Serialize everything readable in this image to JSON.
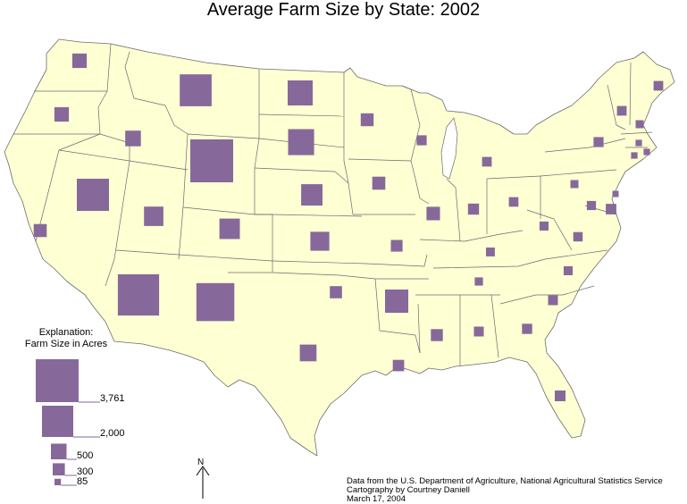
{
  "title": "Average Farm Size by State: 2002",
  "colors": {
    "land": "#ffffd4",
    "border": "#6b6b6b",
    "symbol": "#86699a"
  },
  "legend": {
    "heading_line1": "Explanation:",
    "heading_line2": "Farm Size in Acres",
    "entries": [
      {
        "value": 3761,
        "label": "3,761"
      },
      {
        "value": 2000,
        "label": "2,000"
      },
      {
        "value": 500,
        "label": "500"
      },
      {
        "value": 300,
        "label": "300"
      },
      {
        "value": 85,
        "label": "85"
      }
    ]
  },
  "north_arrow": {
    "label": "N"
  },
  "credits": {
    "line1": "Data from the U.S. Department of Agriculture, National Agricultural Statistics Service",
    "line2": "Cartography by Courtney Daniell",
    "line3": "March 17, 2004"
  },
  "symbol_type": "proportional-square",
  "states": [
    {
      "state": "WA",
      "acres": 426
    },
    {
      "state": "OR",
      "acres": 427
    },
    {
      "state": "CA",
      "acres": 346
    },
    {
      "state": "NV",
      "acres": 2118
    },
    {
      "state": "ID",
      "acres": 502
    },
    {
      "state": "MT",
      "acres": 2079
    },
    {
      "state": "WY",
      "acres": 3761
    },
    {
      "state": "UT",
      "acres": 768
    },
    {
      "state": "AZ",
      "acres": 3480
    },
    {
      "state": "CO",
      "acres": 853
    },
    {
      "state": "NM",
      "acres": 2942
    },
    {
      "state": "ND",
      "acres": 1283
    },
    {
      "state": "SD",
      "acres": 1380
    },
    {
      "state": "NE",
      "acres": 930
    },
    {
      "state": "KS",
      "acres": 733
    },
    {
      "state": "OK",
      "acres": 300
    },
    {
      "state": "TX",
      "acres": 571
    },
    {
      "state": "MN",
      "acres": 340
    },
    {
      "state": "IA",
      "acres": 350
    },
    {
      "state": "MO",
      "acres": 280
    },
    {
      "state": "AR",
      "acres": 1100
    },
    {
      "state": "LA",
      "acres": 262
    },
    {
      "state": "WI",
      "acres": 204
    },
    {
      "state": "IL",
      "acres": 374
    },
    {
      "state": "MI",
      "acres": 190
    },
    {
      "state": "IN",
      "acres": 250
    },
    {
      "state": "OH",
      "acres": 187
    },
    {
      "state": "KY",
      "acres": 160
    },
    {
      "state": "TN",
      "acres": 138
    },
    {
      "state": "MS",
      "acres": 295
    },
    {
      "state": "AL",
      "acres": 196
    },
    {
      "state": "GA",
      "acres": 212
    },
    {
      "state": "FL",
      "acres": 236
    },
    {
      "state": "SC",
      "acres": 197
    },
    {
      "state": "NC",
      "acres": 168
    },
    {
      "state": "VA",
      "acres": 181
    },
    {
      "state": "WV",
      "acres": 167
    },
    {
      "state": "PA",
      "acres": 133
    },
    {
      "state": "NY",
      "acres": 206
    },
    {
      "state": "VT",
      "acres": 189
    },
    {
      "state": "NH",
      "acres": 132
    },
    {
      "state": "ME",
      "acres": 190
    },
    {
      "state": "MA",
      "acres": 85
    },
    {
      "state": "CT",
      "acres": 85
    },
    {
      "state": "RI",
      "acres": 85
    },
    {
      "state": "NJ",
      "acres": 81
    },
    {
      "state": "DE",
      "acres": 226
    },
    {
      "state": "MD",
      "acres": 170
    }
  ]
}
